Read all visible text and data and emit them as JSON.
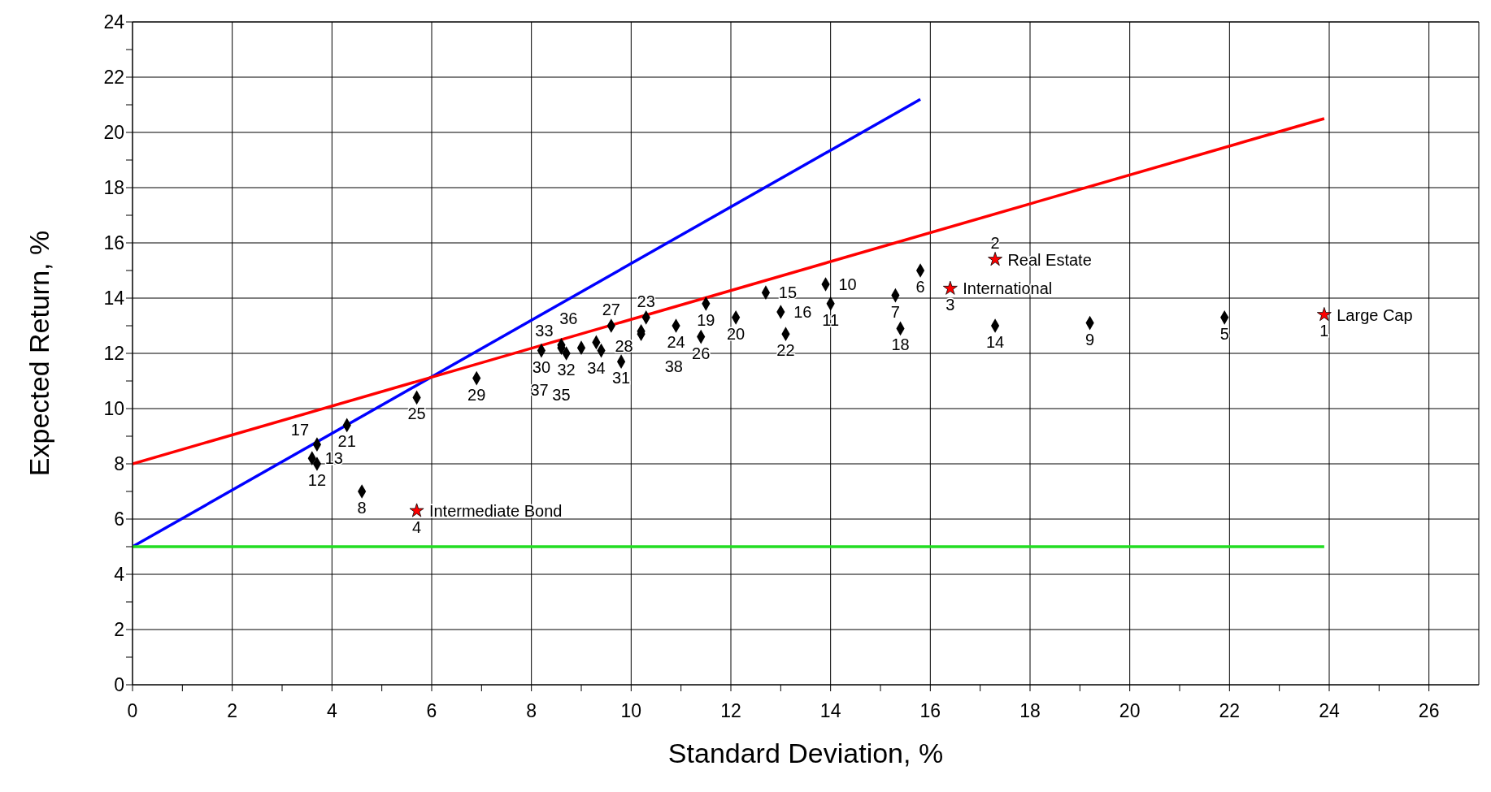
{
  "chart_data": {
    "type": "scatter",
    "xlabel": "Standard Deviation, %",
    "ylabel": "Expected Return, %",
    "xlim": [
      0,
      27
    ],
    "ylim": [
      0,
      24
    ],
    "xticks": [
      0,
      {
        "value": 1,
        "label": null
      },
      2,
      {
        "value": 3,
        "label": null
      },
      4,
      {
        "value": 5,
        "label": null
      },
      6,
      {
        "value": 7,
        "label": null
      },
      8,
      {
        "value": 9,
        "label": null
      },
      10,
      {
        "value": 11,
        "label": null
      },
      12,
      {
        "value": 13,
        "label": null
      },
      14,
      {
        "value": 15,
        "label": null
      },
      16,
      {
        "value": 17,
        "label": null
      },
      18,
      {
        "value": 19,
        "label": null
      },
      20,
      {
        "value": 21,
        "label": null
      },
      22,
      {
        "value": 23,
        "label": null
      },
      24,
      {
        "value": 25,
        "label": null
      },
      26
    ],
    "yticks": [
      0,
      {
        "value": 1,
        "label": null
      },
      2,
      {
        "value": 3,
        "label": null
      },
      4,
      {
        "value": 5,
        "label": null
      },
      6,
      {
        "value": 7,
        "label": null
      },
      8,
      {
        "value": 9,
        "label": null
      },
      10,
      {
        "value": 11,
        "label": null
      },
      12,
      {
        "value": 13,
        "label": null
      },
      14,
      {
        "value": 15,
        "label": null
      },
      16,
      {
        "value": 17,
        "label": null
      },
      18,
      {
        "value": 19,
        "label": null
      },
      20,
      {
        "value": 21,
        "label": null
      },
      22,
      {
        "value": 23,
        "label": null
      },
      24
    ],
    "grid": true,
    "series": [
      {
        "type": "line",
        "color": "#0000ff",
        "x": [
          0,
          15.8
        ],
        "values": [
          5,
          21.2
        ],
        "marker": "none"
      },
      {
        "type": "line",
        "color": "#ff0000",
        "x": [
          0,
          23.9
        ],
        "values": [
          8,
          20.5
        ],
        "marker": "none"
      },
      {
        "type": "line",
        "color": "#22dd22",
        "x": [
          0,
          23.9
        ],
        "values": [
          5,
          5
        ],
        "marker": "none"
      },
      {
        "type": "scatter",
        "color": "#000000",
        "marker": "diamond",
        "x": [
          21.9,
          15.8,
          15.3,
          4.6,
          19.2,
          13.9,
          14.0,
          3.7,
          3.6,
          17.3,
          12.7,
          13.0,
          3.7,
          15.4,
          11.5,
          12.1,
          4.3,
          13.1,
          10.3,
          10.9,
          5.7,
          11.4,
          9.6,
          10.2,
          6.9,
          8.2,
          9.8,
          8.7,
          8.6,
          9.3,
          8.6,
          9.4,
          9.0,
          10.2
        ],
        "values": [
          13.3,
          15.0,
          14.1,
          7.0,
          13.1,
          14.5,
          13.8,
          8.0,
          8.2,
          13.0,
          14.2,
          13.5,
          8.7,
          12.9,
          13.8,
          13.3,
          9.4,
          12.7,
          13.3,
          13.0,
          10.4,
          12.6,
          13.0,
          12.8,
          11.1,
          12.1,
          11.7,
          12.0,
          12.3,
          12.4,
          12.2,
          12.1,
          12.2,
          12.7
        ]
      },
      {
        "type": "scatter",
        "name": "Large Cap",
        "color": "#ff0000",
        "marker": "star",
        "x": [
          23.9
        ],
        "values": [
          13.4
        ]
      },
      {
        "type": "scatter",
        "name": "Real Estate",
        "color": "#ff0000",
        "marker": "star",
        "x": [
          17.3
        ],
        "values": [
          15.4
        ]
      },
      {
        "type": "scatter",
        "name": "International",
        "color": "#ff0000",
        "marker": "star",
        "x": [
          16.4
        ],
        "values": [
          14.35
        ]
      },
      {
        "type": "scatter",
        "name": "Intermediate Bond",
        "color": "#ff0000",
        "marker": "star",
        "x": [
          5.7
        ],
        "values": [
          6.3
        ]
      }
    ],
    "annotations": [
      {
        "text": "1",
        "x": 23.9,
        "y": 13.4
      },
      {
        "text": "2",
        "x": 17.3,
        "y": 15.4
      },
      {
        "text": "3",
        "x": 16.4,
        "y": 14.35
      },
      {
        "text": "4",
        "x": 5.7,
        "y": 6.3
      },
      {
        "text": "5",
        "x": 21.9,
        "y": 13.3
      },
      {
        "text": "6",
        "x": 15.8,
        "y": 15.0
      },
      {
        "text": "7",
        "x": 15.3,
        "y": 14.1
      },
      {
        "text": "8",
        "x": 4.6,
        "y": 7.0
      },
      {
        "text": "9",
        "x": 19.2,
        "y": 13.1
      },
      {
        "text": "10",
        "x": 13.9,
        "y": 14.5
      },
      {
        "text": "11",
        "x": 14.0,
        "y": 13.8
      },
      {
        "text": "12",
        "x": 3.7,
        "y": 8.0
      },
      {
        "text": "13",
        "x": 3.6,
        "y": 8.2
      },
      {
        "text": "14",
        "x": 17.3,
        "y": 13.0
      },
      {
        "text": "15",
        "x": 12.7,
        "y": 14.2
      },
      {
        "text": "16",
        "x": 13.0,
        "y": 13.5
      },
      {
        "text": "17",
        "x": 3.7,
        "y": 8.7
      },
      {
        "text": "18",
        "x": 15.4,
        "y": 12.9
      },
      {
        "text": "19",
        "x": 11.5,
        "y": 13.8
      },
      {
        "text": "20",
        "x": 12.1,
        "y": 13.3
      },
      {
        "text": "21",
        "x": 4.3,
        "y": 9.4
      },
      {
        "text": "22",
        "x": 13.1,
        "y": 12.7
      },
      {
        "text": "23",
        "x": 10.3,
        "y": 13.3
      },
      {
        "text": "24",
        "x": 10.9,
        "y": 13.0
      },
      {
        "text": "25",
        "x": 5.7,
        "y": 10.4
      },
      {
        "text": "26",
        "x": 11.4,
        "y": 12.6
      },
      {
        "text": "27",
        "x": 9.6,
        "y": 13.0
      },
      {
        "text": "28",
        "x": 10.2,
        "y": 12.8
      },
      {
        "text": "29",
        "x": 6.9,
        "y": 11.1
      },
      {
        "text": "30",
        "x": 8.2,
        "y": 12.1
      },
      {
        "text": "31",
        "x": 9.8,
        "y": 11.7
      },
      {
        "text": "32",
        "x": 8.7,
        "y": 12.0
      },
      {
        "text": "33",
        "x": 8.6,
        "y": 12.3
      },
      {
        "text": "34",
        "x": 9.3,
        "y": 12.4
      },
      {
        "text": "35",
        "x": 8.6,
        "y": 12.2
      },
      {
        "text": "36",
        "x": 9.4,
        "y": 12.1
      },
      {
        "text": "37",
        "x": 9.0,
        "y": 12.2
      },
      {
        "text": "38",
        "x": 10.2,
        "y": 12.7
      }
    ]
  }
}
